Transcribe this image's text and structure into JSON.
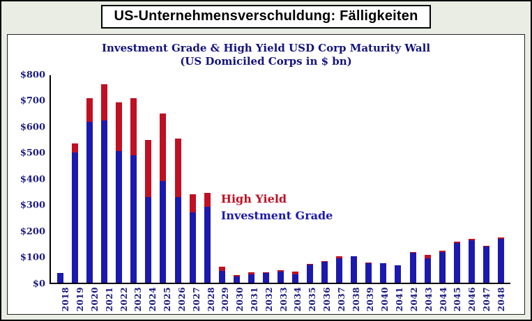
{
  "header": {
    "title": "US-Unternehmensverschuldung: Fälligkeiten"
  },
  "chart_data": {
    "type": "bar",
    "stacked": true,
    "title_line1": "Investment Grade & High Yield USD Corp Maturity Wall",
    "title_line2": "(US Domiciled Corps in $ bn)",
    "categories": [
      "2018",
      "2019",
      "2020",
      "2021",
      "2022",
      "2023",
      "2024",
      "2025",
      "2026",
      "2027",
      "2028",
      "2029",
      "2030",
      "2031",
      "2032",
      "2033",
      "2034",
      "2035",
      "2036",
      "2037",
      "2038",
      "2039",
      "2040",
      "2041",
      "2042",
      "2043",
      "2044",
      "2045",
      "2046",
      "2047",
      "2048"
    ],
    "series": [
      {
        "name": "Investment Grade",
        "color": "#1c19ae",
        "values": [
          35,
          500,
          620,
          625,
          505,
          490,
          330,
          390,
          330,
          270,
          290,
          45,
          22,
          30,
          35,
          42,
          32,
          68,
          78,
          92,
          100,
          75,
          73,
          65,
          113,
          93,
          118,
          152,
          163,
          138,
          168
        ]
      },
      {
        "name": "High Yield",
        "color": "#c01023",
        "values": [
          2,
          35,
          90,
          140,
          190,
          220,
          220,
          260,
          225,
          70,
          55,
          15,
          6,
          8,
          3,
          6,
          10,
          4,
          3,
          10,
          2,
          2,
          2,
          2,
          4,
          12,
          4,
          4,
          4,
          3,
          4
        ]
      }
    ],
    "ylim": [
      0,
      800
    ],
    "yticks": [
      "$0",
      "$100",
      "$200",
      "$300",
      "$400",
      "$500",
      "$600",
      "$700",
      "$800"
    ],
    "legend": [
      {
        "label": "High Yield",
        "color": "#c01023"
      },
      {
        "label": "Investment Grade",
        "color": "#1c19ae"
      }
    ],
    "grid": false,
    "legend_position": "inside-plot"
  }
}
